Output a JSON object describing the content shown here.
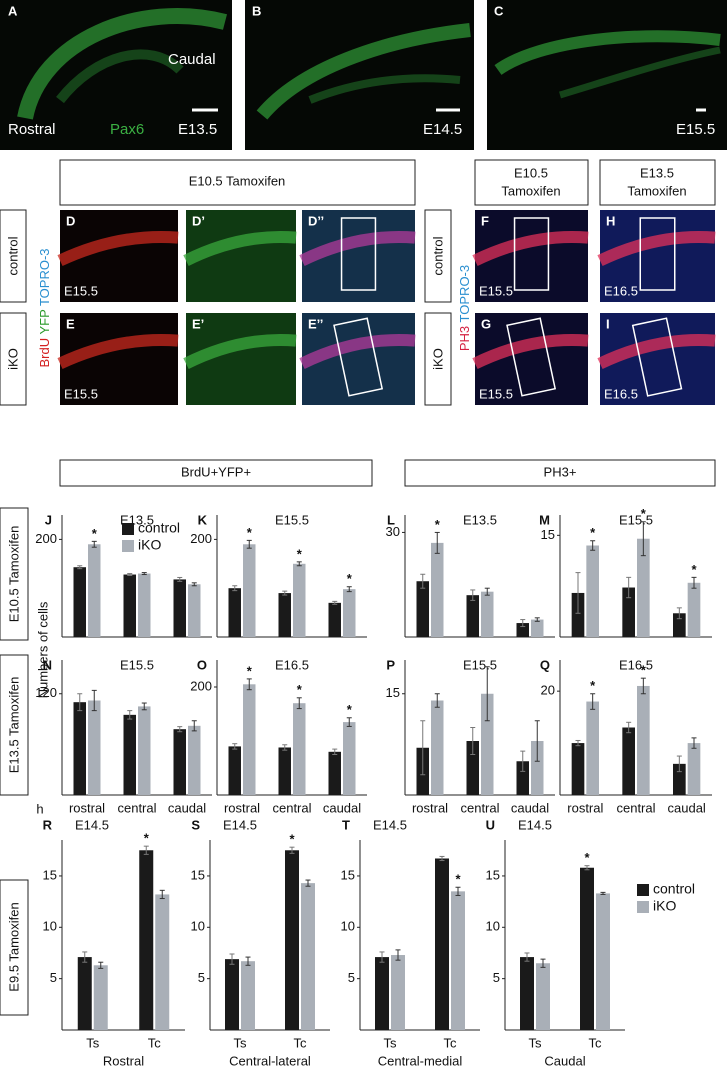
{
  "top_row": {
    "A": "A",
    "caudal": "Caudal",
    "rostral": "Rostral",
    "marker": "Pax6",
    "A_stage": "E13.5",
    "B": "B",
    "B_stage": "E14.5",
    "C": "C",
    "C_stage": "E15.5"
  },
  "middle": {
    "header_left": "E10.5 Tamoxifen",
    "header_f": [
      "E10.5",
      "Tamoxifen"
    ],
    "header_h": [
      "E13.5",
      "Tamoxifen"
    ],
    "control": "control",
    "ikO": "iKO",
    "stain_left": [
      "BrdU",
      "YFP",
      "TOPRO-3"
    ],
    "stain_right": [
      "PH3",
      "TOPRO-3"
    ],
    "panels": [
      {
        "letter": "D",
        "stage": "E15.5"
      },
      {
        "letter": "D’"
      },
      {
        "letter": "D’’"
      },
      {
        "letter": "E",
        "stage": "E15.5"
      },
      {
        "letter": "E’"
      },
      {
        "letter": "E’’"
      },
      {
        "letter": "F",
        "stage": "E15.5"
      },
      {
        "letter": "H",
        "stage": "E16.5"
      },
      {
        "letter": "G",
        "stage": "E15.5"
      },
      {
        "letter": "I",
        "stage": "E16.5"
      }
    ]
  },
  "headers": [
    "BrdU+YFP+",
    "PH3+"
  ],
  "row_labels": [
    "E10.5 Tamoxifen",
    "E13.5 Tamoxifen",
    "E9.5 Tamoxifen"
  ],
  "y_label": "Numbers of cells",
  "chart_data": [
    {
      "type": "bar",
      "panel": "J",
      "title": "E13.5",
      "categories": [
        null,
        null,
        null
      ],
      "ylim": [
        0,
        250
      ],
      "yticks": [
        200
      ],
      "legend": "top",
      "series": [
        {
          "name": "control",
          "color": "#1a1a1a",
          "values": [
            143,
            128,
            118
          ],
          "errors": [
            3,
            2,
            4
          ]
        },
        {
          "name": "iKO",
          "color": "#a9afb7",
          "values": [
            190,
            130,
            108
          ],
          "errors": [
            6,
            2,
            3
          ]
        }
      ],
      "annotations": [
        {
          "text": "*",
          "series": 1,
          "category": 0
        }
      ]
    },
    {
      "type": "bar",
      "panel": "K",
      "title": "E15.5",
      "categories": [
        null,
        null,
        null
      ],
      "ylim": [
        0,
        250
      ],
      "yticks": [
        200
      ],
      "series": [
        {
          "name": "control",
          "color": "#1a1a1a",
          "values": [
            100,
            90,
            70
          ],
          "errors": [
            5,
            4,
            3
          ]
        },
        {
          "name": "iKO",
          "color": "#a9afb7",
          "values": [
            190,
            150,
            98
          ],
          "errors": [
            8,
            4,
            5
          ]
        }
      ],
      "annotations": [
        {
          "text": "*",
          "series": 1,
          "category": 0
        },
        {
          "text": "*",
          "series": 1,
          "category": 1
        },
        {
          "text": "*",
          "series": 1,
          "category": 2
        }
      ]
    },
    {
      "type": "bar",
      "panel": "L",
      "title": "E13.5",
      "categories": [
        null,
        null,
        null
      ],
      "ylim": [
        0,
        35
      ],
      "yticks": [
        30
      ],
      "series": [
        {
          "name": "control",
          "color": "#1a1a1a",
          "values": [
            16,
            12,
            4
          ],
          "errors": [
            2,
            1.5,
            1
          ]
        },
        {
          "name": "iKO",
          "color": "#a9afb7",
          "values": [
            27,
            13,
            5
          ],
          "errors": [
            3,
            1,
            0.5
          ]
        }
      ],
      "annotations": [
        {
          "text": "*",
          "series": 1,
          "category": 0
        }
      ]
    },
    {
      "type": "bar",
      "panel": "M",
      "title": "E15.5",
      "categories": [
        null,
        null,
        null
      ],
      "ylim": [
        0,
        18
      ],
      "yticks": [
        15
      ],
      "series": [
        {
          "name": "control",
          "color": "#1a1a1a",
          "values": [
            6.5,
            7.3,
            3.5
          ],
          "errors": [
            3,
            1.5,
            0.8
          ]
        },
        {
          "name": "iKO",
          "color": "#a9afb7",
          "values": [
            13.5,
            14.5,
            8
          ],
          "errors": [
            0.7,
            2.5,
            0.8
          ]
        }
      ],
      "annotations": [
        {
          "text": "*",
          "series": 1,
          "category": 0
        },
        {
          "text": "*",
          "series": 1,
          "category": 1
        },
        {
          "text": "*",
          "series": 1,
          "category": 2
        }
      ]
    },
    {
      "type": "bar",
      "panel": "N",
      "title": "E15.5",
      "categories": [
        "rostral",
        "central",
        "caudal"
      ],
      "ylim": [
        0,
        160
      ],
      "yticks": [
        120
      ],
      "series": [
        {
          "name": "control",
          "color": "#1a1a1a",
          "values": [
            110,
            95,
            78
          ],
          "errors": [
            10,
            5,
            3
          ]
        },
        {
          "name": "iKO",
          "color": "#a9afb7",
          "values": [
            112,
            105,
            82
          ],
          "errors": [
            12,
            4,
            6
          ]
        }
      ],
      "annotations": []
    },
    {
      "type": "bar",
      "panel": "O",
      "title": "E16.5",
      "categories": [
        "rostral",
        "central",
        "caudal"
      ],
      "ylim": [
        0,
        250
      ],
      "yticks": [
        200
      ],
      "series": [
        {
          "name": "control",
          "color": "#1a1a1a",
          "values": [
            90,
            88,
            80
          ],
          "errors": [
            5,
            5,
            5
          ]
        },
        {
          "name": "iKO",
          "color": "#a9afb7",
          "values": [
            205,
            170,
            135
          ],
          "errors": [
            10,
            10,
            8
          ]
        }
      ],
      "annotations": [
        {
          "text": "*",
          "series": 1,
          "category": 0
        },
        {
          "text": "*",
          "series": 1,
          "category": 1
        },
        {
          "text": "*",
          "series": 1,
          "category": 2
        }
      ]
    },
    {
      "type": "bar",
      "panel": "P",
      "title": "E15.5",
      "categories": [
        "rostral",
        "central",
        "caudal"
      ],
      "ylim": [
        0,
        20
      ],
      "yticks": [
        15
      ],
      "series": [
        {
          "name": "control",
          "color": "#1a1a1a",
          "values": [
            7,
            8,
            5
          ],
          "errors": [
            4,
            2,
            1.5
          ]
        },
        {
          "name": "iKO",
          "color": "#a9afb7",
          "values": [
            14,
            15,
            8
          ],
          "errors": [
            1,
            4,
            3
          ]
        }
      ],
      "annotations": []
    },
    {
      "type": "bar",
      "panel": "Q",
      "title": "E16.5",
      "categories": [
        "rostral",
        "central",
        "caudal"
      ],
      "ylim": [
        0,
        26
      ],
      "yticks": [
        20
      ],
      "series": [
        {
          "name": "control",
          "color": "#1a1a1a",
          "values": [
            10,
            13,
            6
          ],
          "errors": [
            0.5,
            1,
            1.5
          ]
        },
        {
          "name": "iKO",
          "color": "#a9afb7",
          "values": [
            18,
            21,
            10
          ],
          "errors": [
            1.5,
            1.5,
            1
          ]
        }
      ],
      "annotations": [
        {
          "text": "*",
          "series": 1,
          "category": 0
        },
        {
          "text": "*",
          "series": 1,
          "category": 1
        }
      ]
    },
    {
      "type": "bar",
      "panel": "R",
      "title": "E14.5",
      "subtitle": "Rostral",
      "y_label": "h",
      "categories": [
        "Ts",
        "Tc"
      ],
      "ylim": [
        0,
        18.5
      ],
      "yticks": [
        5,
        10,
        15
      ],
      "series": [
        {
          "name": "control",
          "color": "#1a1a1a",
          "values": [
            7.1,
            17.5
          ],
          "errors": [
            0.5,
            0.4
          ]
        },
        {
          "name": "iKO",
          "color": "#a9afb7",
          "values": [
            6.3,
            13.2
          ],
          "errors": [
            0.3,
            0.4
          ]
        }
      ],
      "annotations": [
        {
          "text": "*",
          "series": 0,
          "category": 1
        }
      ]
    },
    {
      "type": "bar",
      "panel": "S",
      "title": "E14.5",
      "subtitle": "Central-lateral",
      "categories": [
        "Ts",
        "Tc"
      ],
      "ylim": [
        0,
        18.5
      ],
      "yticks": [
        5,
        10,
        15
      ],
      "series": [
        {
          "name": "control",
          "color": "#1a1a1a",
          "values": [
            6.9,
            17.5
          ],
          "errors": [
            0.5,
            0.3
          ]
        },
        {
          "name": "iKO",
          "color": "#a9afb7",
          "values": [
            6.7,
            14.3
          ],
          "errors": [
            0.4,
            0.3
          ]
        }
      ],
      "annotations": [
        {
          "text": "*",
          "series": 0,
          "category": 1
        }
      ]
    },
    {
      "type": "bar",
      "panel": "T",
      "title": "E14.5",
      "subtitle": "Central-medial",
      "categories": [
        "Ts",
        "Tc"
      ],
      "ylim": [
        0,
        18.5
      ],
      "yticks": [
        5,
        10,
        15
      ],
      "series": [
        {
          "name": "control",
          "color": "#1a1a1a",
          "values": [
            7.1,
            16.7
          ],
          "errors": [
            0.5,
            0.2
          ]
        },
        {
          "name": "iKO",
          "color": "#a9afb7",
          "values": [
            7.3,
            13.5
          ],
          "errors": [
            0.5,
            0.4
          ]
        }
      ],
      "annotations": [
        {
          "text": "*",
          "series": 1,
          "category": 1
        }
      ]
    },
    {
      "type": "bar",
      "panel": "U",
      "title": "E14.5",
      "subtitle": "Caudal",
      "categories": [
        "Ts",
        "Tc"
      ],
      "ylim": [
        0,
        18.5
      ],
      "yticks": [
        5,
        10,
        15
      ],
      "legend": "outside-right",
      "series": [
        {
          "name": "control",
          "color": "#1a1a1a",
          "values": [
            7.1,
            15.8
          ],
          "errors": [
            0.4,
            0.2
          ]
        },
        {
          "name": "iKO",
          "color": "#a9afb7",
          "values": [
            6.5,
            13.3
          ],
          "errors": [
            0.4,
            0.1
          ]
        }
      ],
      "annotations": [
        {
          "text": "*",
          "series": 0,
          "category": 1
        }
      ]
    }
  ]
}
